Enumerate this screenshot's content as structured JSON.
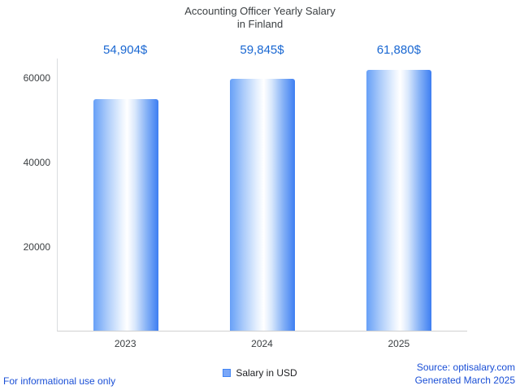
{
  "title": {
    "line1": "Accounting Officer Yearly Salary",
    "line2": "in Finland"
  },
  "chart_data": {
    "type": "bar",
    "title": "Accounting Officer Yearly Salary in Finland",
    "categories": [
      "2023",
      "2024",
      "2025"
    ],
    "values": [
      54904,
      59845,
      61880
    ],
    "value_labels": [
      "54,904$",
      "59,845$",
      "61,880$"
    ],
    "series_name": "Salary in USD",
    "xlabel": "",
    "ylabel": "",
    "ylim": [
      0,
      64600
    ],
    "yticks": [
      20000,
      40000,
      60000
    ],
    "ytick_labels": [
      "20000",
      "40000",
      "60000"
    ],
    "grid": false,
    "legend_position": "bottom"
  },
  "legend": {
    "label": "Salary in USD",
    "swatch_color": "#4285f4"
  },
  "footer": {
    "left": "For informational use only",
    "source": "Source: optisalary.com",
    "generated": "Generated March 2025"
  },
  "colors": {
    "value_label_blue": "#1967d2",
    "footer_blue": "#1a4fd6",
    "axis_gray": "#dadce0",
    "bar_edge_blue": "#3d7ef2",
    "title_gray": "#3c4043"
  }
}
